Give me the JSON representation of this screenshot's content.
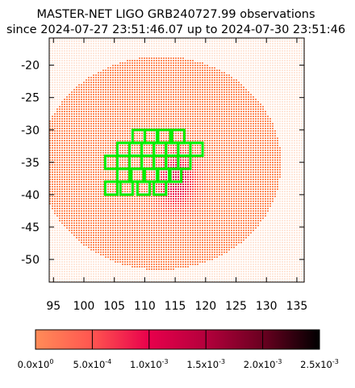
{
  "chart_data": {
    "type": "heatmap",
    "title": "MASTER-NET LIGO GRB240727.99 observations",
    "subtitle": "since 2024-07-27 23:51:46.07 up to 2024-07-30 23:51:46",
    "xlabel": "",
    "ylabel": "",
    "xlim": [
      94.3,
      136.2
    ],
    "ylim": [
      -53.5,
      -15.8
    ],
    "xticks": [
      "95",
      "100",
      "105",
      "110",
      "115",
      "120",
      "125",
      "130",
      "135"
    ],
    "yticks": [
      "-20",
      "-25",
      "-30",
      "-35",
      "-40",
      "-45",
      "-50"
    ],
    "grid": false,
    "colorbar": {
      "range": [
        0,
        0.0025
      ],
      "colors": [
        "#ff8c58",
        "#ff5550",
        "#e8004c",
        "#b4003c",
        "#6a0020",
        "#000000"
      ],
      "ticks": [
        {
          "value": 0.0,
          "mant": "0.0x10",
          "exp": "0"
        },
        {
          "value": 0.0005,
          "mant": "5.0x10",
          "exp": "-4"
        },
        {
          "value": 0.001,
          "mant": "1.0x10",
          "exp": "-3"
        },
        {
          "value": 0.0015,
          "mant": "1.5x10",
          "exp": "-3"
        },
        {
          "value": 0.002,
          "mant": "2.0x10",
          "exp": "-3"
        },
        {
          "value": 0.0025,
          "mant": "2.5x10",
          "exp": "-3"
        }
      ]
    },
    "probability_region": {
      "center_ra": 112.5,
      "center_dec": -35.0,
      "radius_ra": 19.8,
      "radius_dec": 16.5,
      "peak_ra": 115.0,
      "peak_dec": -37.5,
      "peak_value": 0.0012
    },
    "observed_fields": [
      {
        "ra": 109.0,
        "dec": -31.0
      },
      {
        "ra": 111.0,
        "dec": -31.0
      },
      {
        "ra": 113.2,
        "dec": -31.0
      },
      {
        "ra": 115.5,
        "dec": -31.0
      },
      {
        "ra": 106.5,
        "dec": -33.0
      },
      {
        "ra": 108.5,
        "dec": -33.0
      },
      {
        "ra": 110.5,
        "dec": -33.0
      },
      {
        "ra": 112.5,
        "dec": -33.0
      },
      {
        "ra": 114.5,
        "dec": -33.0
      },
      {
        "ra": 116.5,
        "dec": -33.0
      },
      {
        "ra": 118.5,
        "dec": -33.0
      },
      {
        "ra": 104.5,
        "dec": -35.0
      },
      {
        "ra": 106.5,
        "dec": -35.0
      },
      {
        "ra": 108.5,
        "dec": -35.0
      },
      {
        "ra": 110.5,
        "dec": -35.0
      },
      {
        "ra": 112.5,
        "dec": -35.0
      },
      {
        "ra": 114.5,
        "dec": -35.0
      },
      {
        "ra": 116.5,
        "dec": -35.0
      },
      {
        "ra": 106.5,
        "dec": -37.0
      },
      {
        "ra": 108.8,
        "dec": -37.0
      },
      {
        "ra": 111.0,
        "dec": -37.0
      },
      {
        "ra": 113.2,
        "dec": -37.0
      },
      {
        "ra": 115.0,
        "dec": -37.0
      },
      {
        "ra": 104.5,
        "dec": -39.0
      },
      {
        "ra": 107.0,
        "dec": -39.0
      },
      {
        "ra": 109.8,
        "dec": -39.0
      },
      {
        "ra": 112.5,
        "dec": -39.0
      }
    ],
    "field_size_deg": 2.0,
    "field_color": "#00ee00"
  }
}
